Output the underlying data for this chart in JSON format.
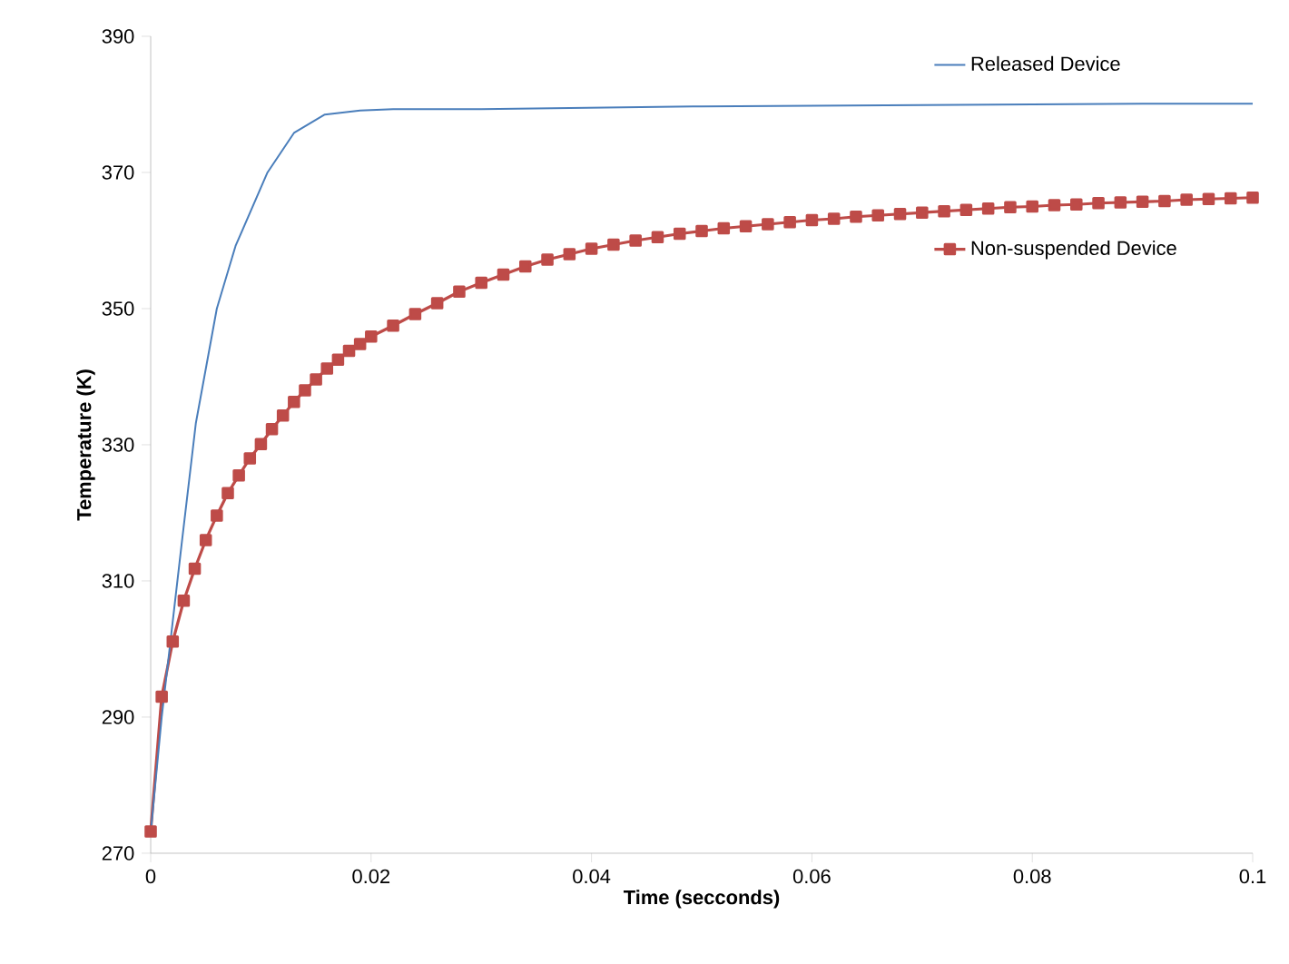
{
  "chart_data": {
    "type": "line",
    "xlabel": "Time (secconds)",
    "ylabel": "Temperature (K)",
    "xlim": [
      0,
      0.1
    ],
    "xticks": [
      0,
      0.02,
      0.04,
      0.06,
      0.08,
      0.1
    ],
    "ylim": [
      270,
      390
    ],
    "yticks": [
      270,
      290,
      310,
      330,
      350,
      370,
      390
    ],
    "grid": false,
    "legend": "top right",
    "series": [
      {
        "name": "Released Device",
        "color": "#4a7ebb",
        "marker": "none",
        "x": [
          0,
          0.001,
          0.0015,
          0.0028,
          0.0041,
          0.006,
          0.0077,
          0.0106,
          0.013,
          0.0158,
          0.019,
          0.022,
          0.025,
          0.03,
          0.04,
          0.05,
          0.06,
          0.07,
          0.08,
          0.09,
          0.1
        ],
        "values": [
          273,
          290,
          297,
          315.3,
          333.2,
          350,
          359.2,
          370,
          375.8,
          378.5,
          379.1,
          379.3,
          379.3,
          379.3,
          379.5,
          379.7,
          379.8,
          379.9,
          380,
          380.1,
          380.1
        ]
      },
      {
        "name": "Non-suspended Device",
        "color": "#be4b48",
        "marker": "square",
        "x": [
          0,
          0.001,
          0.002,
          0.003,
          0.004,
          0.005,
          0.006,
          0.007,
          0.008,
          0.009,
          0.01,
          0.011,
          0.012,
          0.013,
          0.014,
          0.015,
          0.016,
          0.017,
          0.018,
          0.019,
          0.02,
          0.022,
          0.024,
          0.026,
          0.028,
          0.03,
          0.032,
          0.034,
          0.036,
          0.038,
          0.04,
          0.042,
          0.044,
          0.046,
          0.048,
          0.05,
          0.052,
          0.054,
          0.056,
          0.058,
          0.06,
          0.062,
          0.064,
          0.066,
          0.068,
          0.07,
          0.072,
          0.074,
          0.076,
          0.078,
          0.08,
          0.082,
          0.084,
          0.086,
          0.088,
          0.09,
          0.092,
          0.094,
          0.096,
          0.098,
          0.1
        ],
        "values": [
          273.2,
          293,
          301.1,
          307.1,
          311.8,
          316,
          319.6,
          322.9,
          325.5,
          328,
          330.1,
          332.3,
          334.3,
          336.3,
          338,
          339.6,
          341.2,
          342.5,
          343.8,
          344.8,
          345.9,
          347.5,
          349.2,
          350.8,
          352.5,
          353.8,
          355,
          356.2,
          357.2,
          358,
          358.8,
          359.4,
          360,
          360.5,
          361,
          361.4,
          361.8,
          362.1,
          362.4,
          362.7,
          363,
          363.2,
          363.5,
          363.7,
          363.9,
          364.1,
          364.3,
          364.5,
          364.7,
          364.9,
          365,
          365.2,
          365.3,
          365.5,
          365.6,
          365.7,
          365.8,
          366,
          366.1,
          366.2,
          366.3
        ]
      }
    ]
  }
}
